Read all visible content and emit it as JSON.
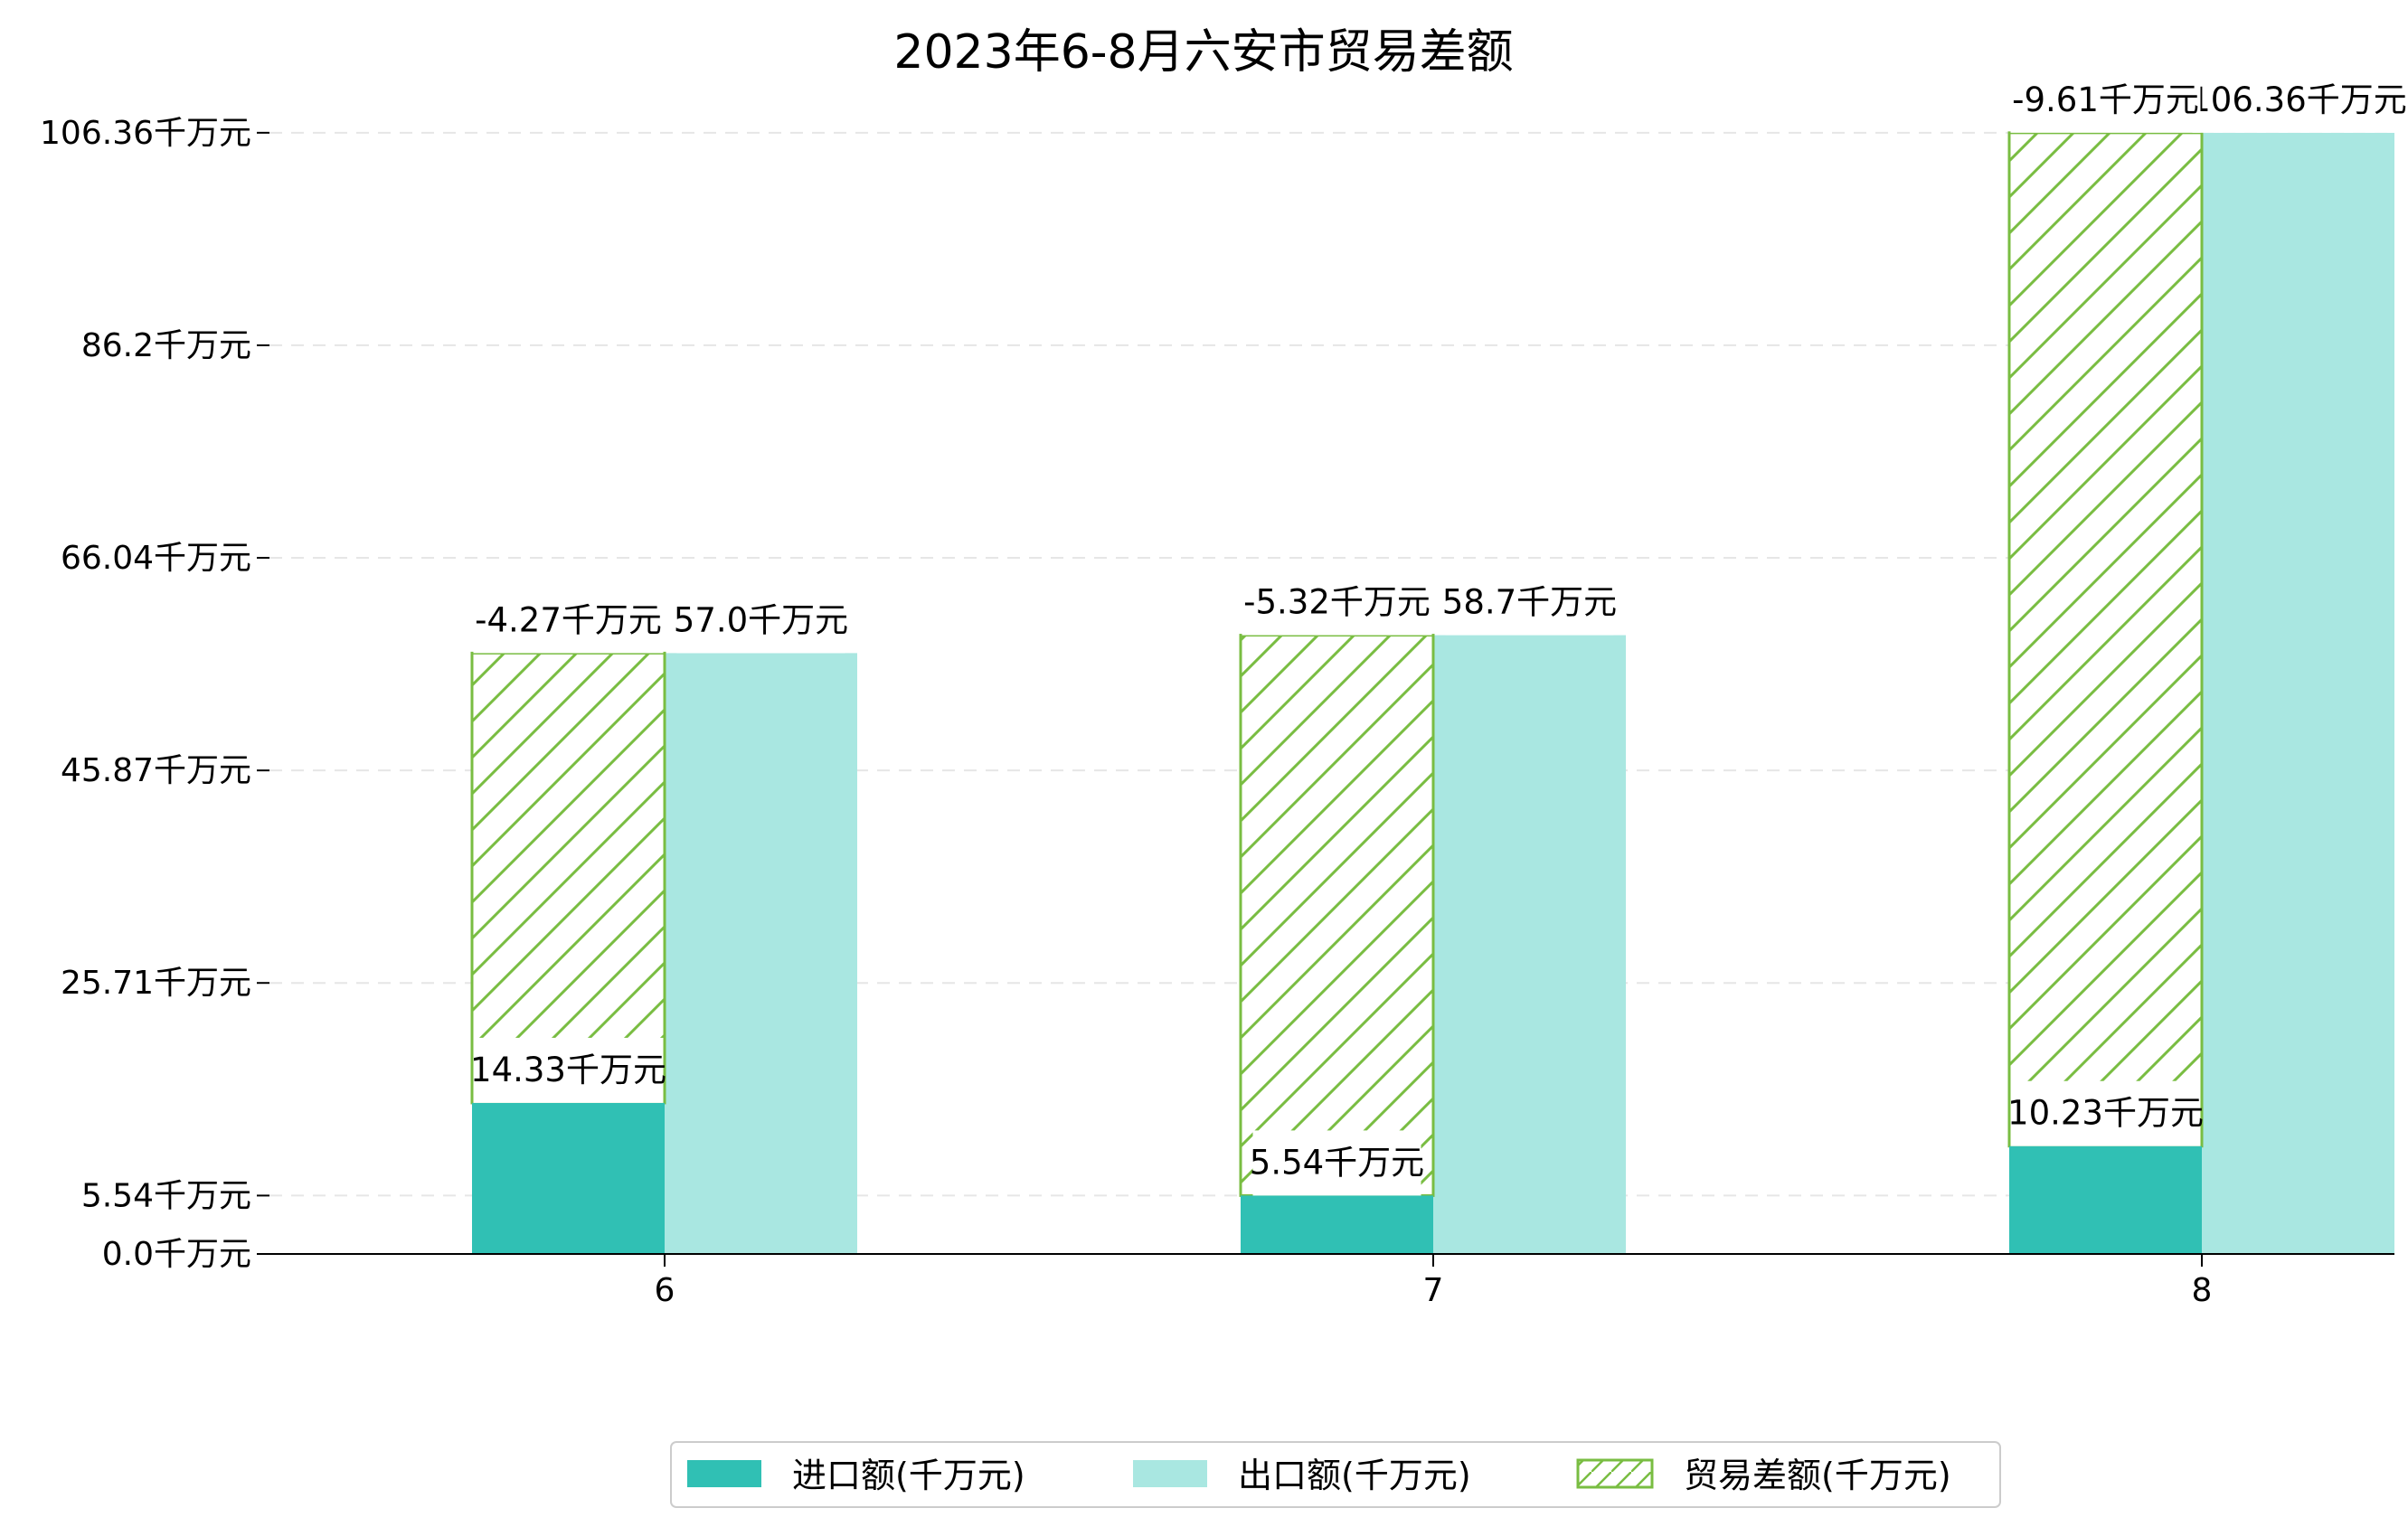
{
  "chart_data": {
    "type": "bar",
    "title": "2023年6-8月六安市贸易差额",
    "xlabel": "",
    "ylabel": "",
    "categories": [
      "6",
      "7",
      "8"
    ],
    "yticks": [
      0.0,
      5.54,
      25.71,
      45.87,
      66.04,
      86.2,
      106.36
    ],
    "ytick_labels": [
      "0.0千万元",
      "5.54千万元",
      "25.71千万元",
      "45.87千万元",
      "66.04千万元",
      "86.2千万元",
      "106.36千万元"
    ],
    "ylim": [
      0,
      112
    ],
    "grid": true,
    "legend_position": "bottom-center",
    "series": [
      {
        "name": "进口额(千万元)",
        "values": [
          14.33,
          5.54,
          10.23
        ],
        "labels": [
          "14.33千万元",
          "5.54千万元",
          "10.23千万元"
        ],
        "color": "#30c0b4"
      },
      {
        "name": "出口额(千万元)",
        "values": [
          57.0,
          58.7,
          106.36
        ],
        "labels": [
          "57.0千万元",
          "58.7千万元",
          "106.36千万元"
        ],
        "color": "#a9e7e1"
      },
      {
        "name": "贸易差额(千万元)",
        "values": [
          -4.27,
          -5.32,
          -9.61
        ],
        "labels": [
          "-4.27千万元",
          "-5.32千万元",
          "-9.61千万元"
        ],
        "color": "#79bd42",
        "hatch": "/"
      }
    ]
  }
}
